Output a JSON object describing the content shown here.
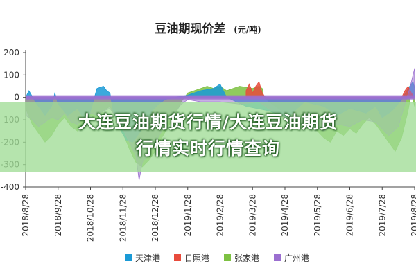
{
  "chart_data": {
    "type": "area",
    "title": "豆油期现价差",
    "unit": "(元/吨)",
    "xlabel": "",
    "ylabel": "",
    "ylim": [
      -400,
      200
    ],
    "yticks": [
      -400,
      -300,
      -200,
      -100,
      0,
      100,
      200
    ],
    "ytick_labels": [
      "-400",
      "-300",
      "-200",
      "-100",
      "0",
      "100",
      "200"
    ],
    "xtick_labels": [
      "2018/8/28",
      "2018/9/28",
      "2018/10/28",
      "2018/11/28",
      "2018/12/28",
      "2019/1/28",
      "2019/2/28",
      "2019/3/28",
      "2019/4/28",
      "2019/5/28",
      "2019/6/28",
      "2019/7/28",
      "2019/8/28"
    ],
    "x_index_range": [
      0,
      12
    ],
    "grid": false,
    "legend_position": "bottom",
    "series": [
      {
        "name": "天津港",
        "color": "#1a9ad6",
        "points": [
          [
            0.0,
            0
          ],
          [
            0.1,
            30
          ],
          [
            0.3,
            -20
          ],
          [
            0.6,
            -80
          ],
          [
            0.8,
            -40
          ],
          [
            0.9,
            20
          ],
          [
            1.0,
            -30
          ],
          [
            1.3,
            -80
          ],
          [
            1.6,
            -50
          ],
          [
            1.9,
            -120
          ],
          [
            2.0,
            -60
          ],
          [
            2.2,
            40
          ],
          [
            2.4,
            50
          ],
          [
            2.5,
            30
          ],
          [
            2.6,
            20
          ],
          [
            2.7,
            -60
          ],
          [
            2.9,
            -140
          ],
          [
            3.1,
            -190
          ],
          [
            3.3,
            -200
          ],
          [
            3.5,
            -160
          ],
          [
            3.7,
            -120
          ],
          [
            3.9,
            -60
          ],
          [
            4.1,
            -30
          ],
          [
            4.3,
            -10
          ],
          [
            4.6,
            0
          ],
          [
            5.0,
            10
          ],
          [
            5.4,
            30
          ],
          [
            5.8,
            40
          ],
          [
            6.0,
            60
          ],
          [
            6.1,
            30
          ],
          [
            6.2,
            0
          ],
          [
            6.8,
            -40
          ],
          [
            7.5,
            -60
          ],
          [
            8.1,
            -90
          ],
          [
            8.3,
            -60
          ],
          [
            8.6,
            -20
          ],
          [
            9.2,
            -40
          ],
          [
            9.6,
            -80
          ],
          [
            10.0,
            -50
          ],
          [
            10.5,
            -70
          ],
          [
            10.8,
            -40
          ],
          [
            11.0,
            -90
          ],
          [
            11.3,
            -60
          ],
          [
            11.6,
            -10
          ],
          [
            11.8,
            40
          ],
          [
            11.95,
            70
          ],
          [
            12.0,
            40
          ]
        ]
      },
      {
        "name": "日照港",
        "color": "#e84b3c",
        "points": [
          [
            6.8,
            30
          ],
          [
            6.9,
            60
          ],
          [
            7.0,
            20
          ],
          [
            7.1,
            50
          ],
          [
            7.2,
            70
          ],
          [
            7.3,
            20
          ],
          [
            7.4,
            0
          ],
          [
            11.6,
            0
          ],
          [
            11.7,
            30
          ],
          [
            11.8,
            50
          ],
          [
            11.9,
            20
          ],
          [
            12.0,
            0
          ]
        ]
      },
      {
        "name": "张家港",
        "color": "#7dc142",
        "points": [
          [
            0.0,
            -50
          ],
          [
            0.2,
            -120
          ],
          [
            0.4,
            -160
          ],
          [
            0.6,
            -200
          ],
          [
            0.8,
            -170
          ],
          [
            1.0,
            -120
          ],
          [
            1.2,
            -90
          ],
          [
            1.4,
            -130
          ],
          [
            1.6,
            -150
          ],
          [
            1.8,
            -110
          ],
          [
            2.0,
            -80
          ],
          [
            2.2,
            -100
          ],
          [
            2.4,
            -60
          ],
          [
            2.6,
            -40
          ],
          [
            2.8,
            -100
          ],
          [
            3.0,
            -160
          ],
          [
            3.2,
            -230
          ],
          [
            3.4,
            -290
          ],
          [
            3.6,
            -310
          ],
          [
            3.8,
            -280
          ],
          [
            4.0,
            -240
          ],
          [
            4.2,
            -180
          ],
          [
            4.4,
            -130
          ],
          [
            4.6,
            -80
          ],
          [
            4.8,
            -20
          ],
          [
            5.0,
            20
          ],
          [
            5.2,
            30
          ],
          [
            5.4,
            40
          ],
          [
            5.6,
            50
          ],
          [
            5.8,
            40
          ],
          [
            6.0,
            50
          ],
          [
            6.2,
            30
          ],
          [
            6.4,
            40
          ],
          [
            6.6,
            50
          ],
          [
            6.8,
            45
          ],
          [
            7.0,
            40
          ],
          [
            7.2,
            50
          ],
          [
            7.3,
            40
          ],
          [
            7.35,
            0
          ],
          [
            7.6,
            -30
          ],
          [
            7.9,
            -60
          ],
          [
            8.2,
            -100
          ],
          [
            8.5,
            -90
          ],
          [
            8.8,
            -120
          ],
          [
            9.0,
            -150
          ],
          [
            9.2,
            -180
          ],
          [
            9.4,
            -200
          ],
          [
            9.6,
            -150
          ],
          [
            9.8,
            -170
          ],
          [
            10.0,
            -140
          ],
          [
            10.2,
            -160
          ],
          [
            10.4,
            -120
          ],
          [
            10.6,
            -90
          ],
          [
            10.8,
            -120
          ],
          [
            11.0,
            -160
          ],
          [
            11.2,
            -200
          ],
          [
            11.4,
            -240
          ],
          [
            11.6,
            -180
          ],
          [
            11.8,
            -60
          ],
          [
            11.9,
            20
          ],
          [
            12.0,
            -40
          ]
        ]
      },
      {
        "name": "广州港",
        "color": "#9b6fd0",
        "points": [
          [
            0.0,
            -80
          ],
          [
            0.2,
            -100
          ],
          [
            0.4,
            -130
          ],
          [
            0.6,
            -110
          ],
          [
            0.8,
            -90
          ],
          [
            1.0,
            -100
          ],
          [
            1.2,
            -70
          ],
          [
            1.4,
            -110
          ],
          [
            1.6,
            -120
          ],
          [
            1.8,
            -90
          ],
          [
            2.0,
            -70
          ],
          [
            2.2,
            -80
          ],
          [
            2.4,
            -60
          ],
          [
            2.6,
            -50
          ],
          [
            2.8,
            -90
          ],
          [
            3.0,
            -140
          ],
          [
            3.2,
            -200
          ],
          [
            3.4,
            -260
          ],
          [
            3.5,
            -370
          ],
          [
            3.6,
            -290
          ],
          [
            3.8,
            -250
          ],
          [
            4.0,
            -200
          ],
          [
            4.2,
            -150
          ],
          [
            4.4,
            -100
          ],
          [
            4.6,
            -70
          ],
          [
            4.8,
            -30
          ],
          [
            5.0,
            -10
          ],
          [
            5.4,
            -20
          ],
          [
            6.0,
            -20
          ],
          [
            6.6,
            -30
          ],
          [
            7.2,
            -20
          ],
          [
            7.6,
            -60
          ],
          [
            8.0,
            -90
          ],
          [
            8.4,
            -110
          ],
          [
            8.8,
            -130
          ],
          [
            9.2,
            -150
          ],
          [
            9.6,
            -120
          ],
          [
            10.0,
            -130
          ],
          [
            10.4,
            -100
          ],
          [
            10.8,
            -110
          ],
          [
            11.2,
            -170
          ],
          [
            11.5,
            -130
          ],
          [
            11.7,
            -30
          ],
          [
            11.85,
            40
          ],
          [
            12.0,
            130
          ]
        ]
      }
    ]
  },
  "overlay": {
    "line1": "大连豆油期货行情/大连豆油期货",
    "line2": "行情实时行情查询"
  }
}
